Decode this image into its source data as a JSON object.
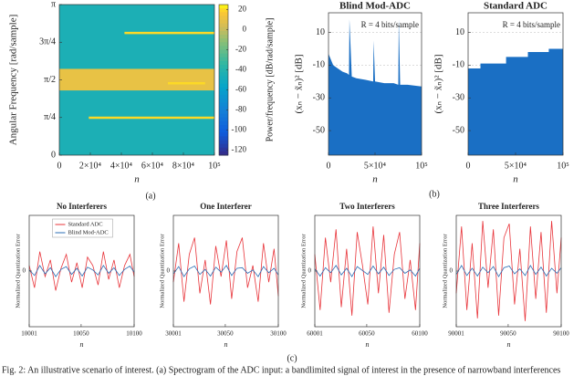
{
  "chart_data": [
    {
      "type": "heatmap",
      "xlabel": "n",
      "ylabel": "Angular Frequency [rad/sample]",
      "xlim": [
        0,
        100000
      ],
      "ylim": [
        0,
        3.1416
      ],
      "xticks": [
        0,
        {
          "value": 20000,
          "label": "2×10⁴"
        },
        {
          "value": 40000,
          "label": "4×10⁴"
        },
        {
          "value": 60000,
          "label": "6×10⁴"
        },
        {
          "value": 80000,
          "label": "8×10⁴"
        },
        {
          "value": 100000,
          "label": "10⁵"
        }
      ],
      "yticks": [
        0,
        {
          "value": 0.7854,
          "label": "π/4"
        },
        {
          "value": 1.5708,
          "label": "π/2"
        },
        {
          "value": 2.3562,
          "label": "3π/4"
        },
        {
          "value": 3.1416,
          "label": "π"
        }
      ],
      "background": -45,
      "band": {
        "ylim": [
          1.35,
          1.8
        ],
        "value": 10
      },
      "lines": [
        {
          "x": [
            42000,
            100000
          ],
          "y": 2.55,
          "value": 20
        },
        {
          "x": [
            19000,
            100000
          ],
          "y": 0.78,
          "value": 20
        },
        {
          "x": [
            70000,
            94000
          ],
          "y": 1.5,
          "value": 20
        }
      ],
      "clim": [
        -125,
        25
      ],
      "cticks": [
        20,
        0,
        -20,
        -40,
        -60,
        -80,
        -100,
        -120
      ],
      "colorbar_label": "Power/frequency [dB/rad/sample]"
    },
    {
      "type": "area",
      "title": "Blind Mod-ADC",
      "xlabel": "n",
      "ylabel": "(xₙ − x̃ₙ)² [dB]",
      "annotation": "R = 4 bits/sample",
      "xlim": [
        0,
        100000
      ],
      "ylim": [
        -65,
        22
      ],
      "xticks": [
        0,
        {
          "value": 50000,
          "label": "5×10⁴"
        },
        {
          "value": 100000,
          "label": "10⁵"
        }
      ],
      "yticks": [
        10,
        -10,
        -30,
        -50
      ],
      "grid": true,
      "color": "#1a6fc4",
      "x": [
        0,
        5000,
        10000,
        15000,
        20000,
        22000,
        22500,
        25000,
        30000,
        40000,
        48000,
        48500,
        50000,
        60000,
        70000,
        75000,
        75500,
        77000,
        85000,
        100000
      ],
      "series": [
        {
          "values": [
            -3,
            -10,
            -12,
            -14,
            -15,
            -16,
            18,
            -17,
            -18,
            -19,
            -20,
            5,
            -20,
            -21,
            -21,
            -22,
            18,
            -22,
            -22,
            -23
          ]
        }
      ]
    },
    {
      "type": "area",
      "title": "Standard ADC",
      "xlabel": "n",
      "ylabel": "(xₙ − x̃ₙ)² [dB]",
      "annotation": "R = 4 bits/sample",
      "xlim": [
        0,
        100000
      ],
      "ylim": [
        -65,
        22
      ],
      "xticks": [
        0,
        {
          "value": 50000,
          "label": "5×10⁴"
        },
        {
          "value": 100000,
          "label": "10⁵"
        }
      ],
      "yticks": [
        10,
        -10,
        -30,
        -50
      ],
      "grid": true,
      "color": "#1a6fc4",
      "x": [
        0,
        13000,
        13000,
        40000,
        40000,
        63000,
        63000,
        85000,
        85000,
        100000
      ],
      "series": [
        {
          "values": [
            -12,
            -12,
            -9,
            -9,
            -5,
            -5,
            -2,
            -2,
            0,
            0
          ]
        }
      ]
    },
    {
      "type": "line",
      "title": "No Interferers",
      "xlabel": "n",
      "ylabel": "Normalized Quantization Error",
      "xlim": [
        10001,
        10100
      ],
      "ylim": [
        -1,
        1
      ],
      "xticks": [
        10001,
        10050,
        10100
      ],
      "yticks": [
        0
      ],
      "legend": "upper center",
      "x": [
        10001,
        10006,
        10011,
        10016,
        10021,
        10026,
        10031,
        10036,
        10041,
        10046,
        10051,
        10056,
        10061,
        10066,
        10071,
        10076,
        10081,
        10086,
        10091,
        10096,
        10100
      ],
      "series": [
        {
          "name": "Standard ADC",
          "color": "#e8343a",
          "values": [
            0.1,
            -0.3,
            0.35,
            -0.1,
            0.2,
            -0.35,
            0.05,
            0.3,
            -0.2,
            0.15,
            -0.3,
            0.25,
            0.1,
            -0.25,
            0.35,
            -0.15,
            0.2,
            -0.3,
            0.1,
            0.3,
            -0.1
          ]
        },
        {
          "name": "Blind Mod-ADC",
          "color": "#2a6db4",
          "values": [
            0.02,
            -0.08,
            0.1,
            -0.05,
            0.06,
            -0.1,
            0.03,
            0.08,
            -0.06,
            0.05,
            -0.09,
            0.07,
            0.02,
            -0.07,
            0.1,
            -0.04,
            0.06,
            -0.08,
            0.03,
            0.09,
            -0.02
          ]
        }
      ]
    },
    {
      "type": "line",
      "title": "One Interferer",
      "xlabel": "n",
      "ylabel": "Normalized Quantization Error",
      "xlim": [
        30001,
        30100
      ],
      "ylim": [
        -1,
        1
      ],
      "xticks": [
        30001,
        30050,
        30100
      ],
      "yticks": [
        0
      ],
      "x": [
        30001,
        30006,
        30011,
        30016,
        30021,
        30026,
        30031,
        30036,
        30041,
        30046,
        30051,
        30056,
        30061,
        30066,
        30071,
        30076,
        30081,
        30086,
        30091,
        30096,
        30100
      ],
      "series": [
        {
          "color": "#e8343a",
          "values": [
            -0.2,
            0.5,
            -0.55,
            0.3,
            0.6,
            -0.4,
            0.2,
            -0.6,
            0.45,
            -0.1,
            0.55,
            -0.5,
            0.35,
            0.6,
            -0.3,
            0.1,
            -0.55,
            0.5,
            -0.2,
            0.4,
            -0.45
          ]
        },
        {
          "color": "#2a6db4",
          "values": [
            -0.05,
            0.08,
            -0.1,
            0.04,
            0.09,
            -0.06,
            0.03,
            -0.09,
            0.07,
            -0.02,
            0.1,
            -0.08,
            0.05,
            0.06,
            -0.04,
            0.02,
            -0.1,
            0.08,
            -0.03,
            0.05,
            -0.07
          ]
        }
      ]
    },
    {
      "type": "line",
      "title": "Two Interferers",
      "xlabel": "n",
      "ylabel": "Normalized Quantization Error",
      "xlim": [
        60001,
        60100
      ],
      "ylim": [
        -1,
        1
      ],
      "xticks": [
        60001,
        60050,
        60100
      ],
      "yticks": [
        0
      ],
      "x": [
        60001,
        60006,
        60011,
        60016,
        60021,
        60026,
        60031,
        60036,
        60041,
        60046,
        60051,
        60056,
        60061,
        60066,
        60071,
        60076,
        60081,
        60086,
        60091,
        60096,
        60100
      ],
      "series": [
        {
          "color": "#e8343a",
          "values": [
            0.3,
            -0.7,
            0.6,
            -0.2,
            0.75,
            -0.65,
            0.4,
            -0.8,
            0.7,
            0.1,
            -0.6,
            0.8,
            -0.4,
            0.65,
            -0.75,
            0.3,
            0.7,
            -0.5,
            0.2,
            -0.7,
            0.5
          ]
        },
        {
          "color": "#2a6db4",
          "values": [
            0.04,
            -0.09,
            0.06,
            -0.03,
            0.1,
            -0.07,
            0.05,
            -0.1,
            0.08,
            0.01,
            -0.06,
            0.09,
            -0.05,
            0.07,
            -0.08,
            0.03,
            0.06,
            -0.04,
            0.02,
            -0.09,
            0.05
          ]
        }
      ]
    },
    {
      "type": "line",
      "title": "Three Interferers",
      "xlabel": "n",
      "ylabel": "Normalized Quantization Error",
      "xlim": [
        90001,
        90100
      ],
      "ylim": [
        -1,
        1
      ],
      "xticks": [
        90001,
        90050,
        90100
      ],
      "yticks": [
        0
      ],
      "x": [
        90001,
        90006,
        90011,
        90016,
        90021,
        90026,
        90031,
        90036,
        90041,
        90046,
        90051,
        90056,
        90061,
        90066,
        90071,
        90076,
        90081,
        90086,
        90091,
        90096,
        90100
      ],
      "series": [
        {
          "color": "#e8343a",
          "values": [
            -0.4,
            0.8,
            -0.7,
            0.5,
            -0.85,
            0.9,
            -0.3,
            0.75,
            -0.8,
            0.6,
            0.85,
            -0.6,
            0.4,
            -0.9,
            0.8,
            -0.5,
            0.7,
            -0.75,
            0.9,
            -0.4,
            0.6
          ]
        },
        {
          "color": "#2a6db4",
          "values": [
            -0.06,
            0.1,
            -0.08,
            0.05,
            -0.09,
            0.07,
            -0.03,
            0.08,
            -0.1,
            0.06,
            0.09,
            -0.05,
            0.04,
            -0.08,
            0.1,
            -0.06,
            0.07,
            -0.09,
            0.05,
            -0.04,
            0.06
          ]
        }
      ]
    }
  ],
  "panels": [
    "(a)",
    "(b)",
    "(c)"
  ],
  "caption": "Fig. 2: An illustrative scenario of interest. (a) Spectrogram of the ADC input: a bandlimited signal of interest in the presence of narrowband interferences"
}
